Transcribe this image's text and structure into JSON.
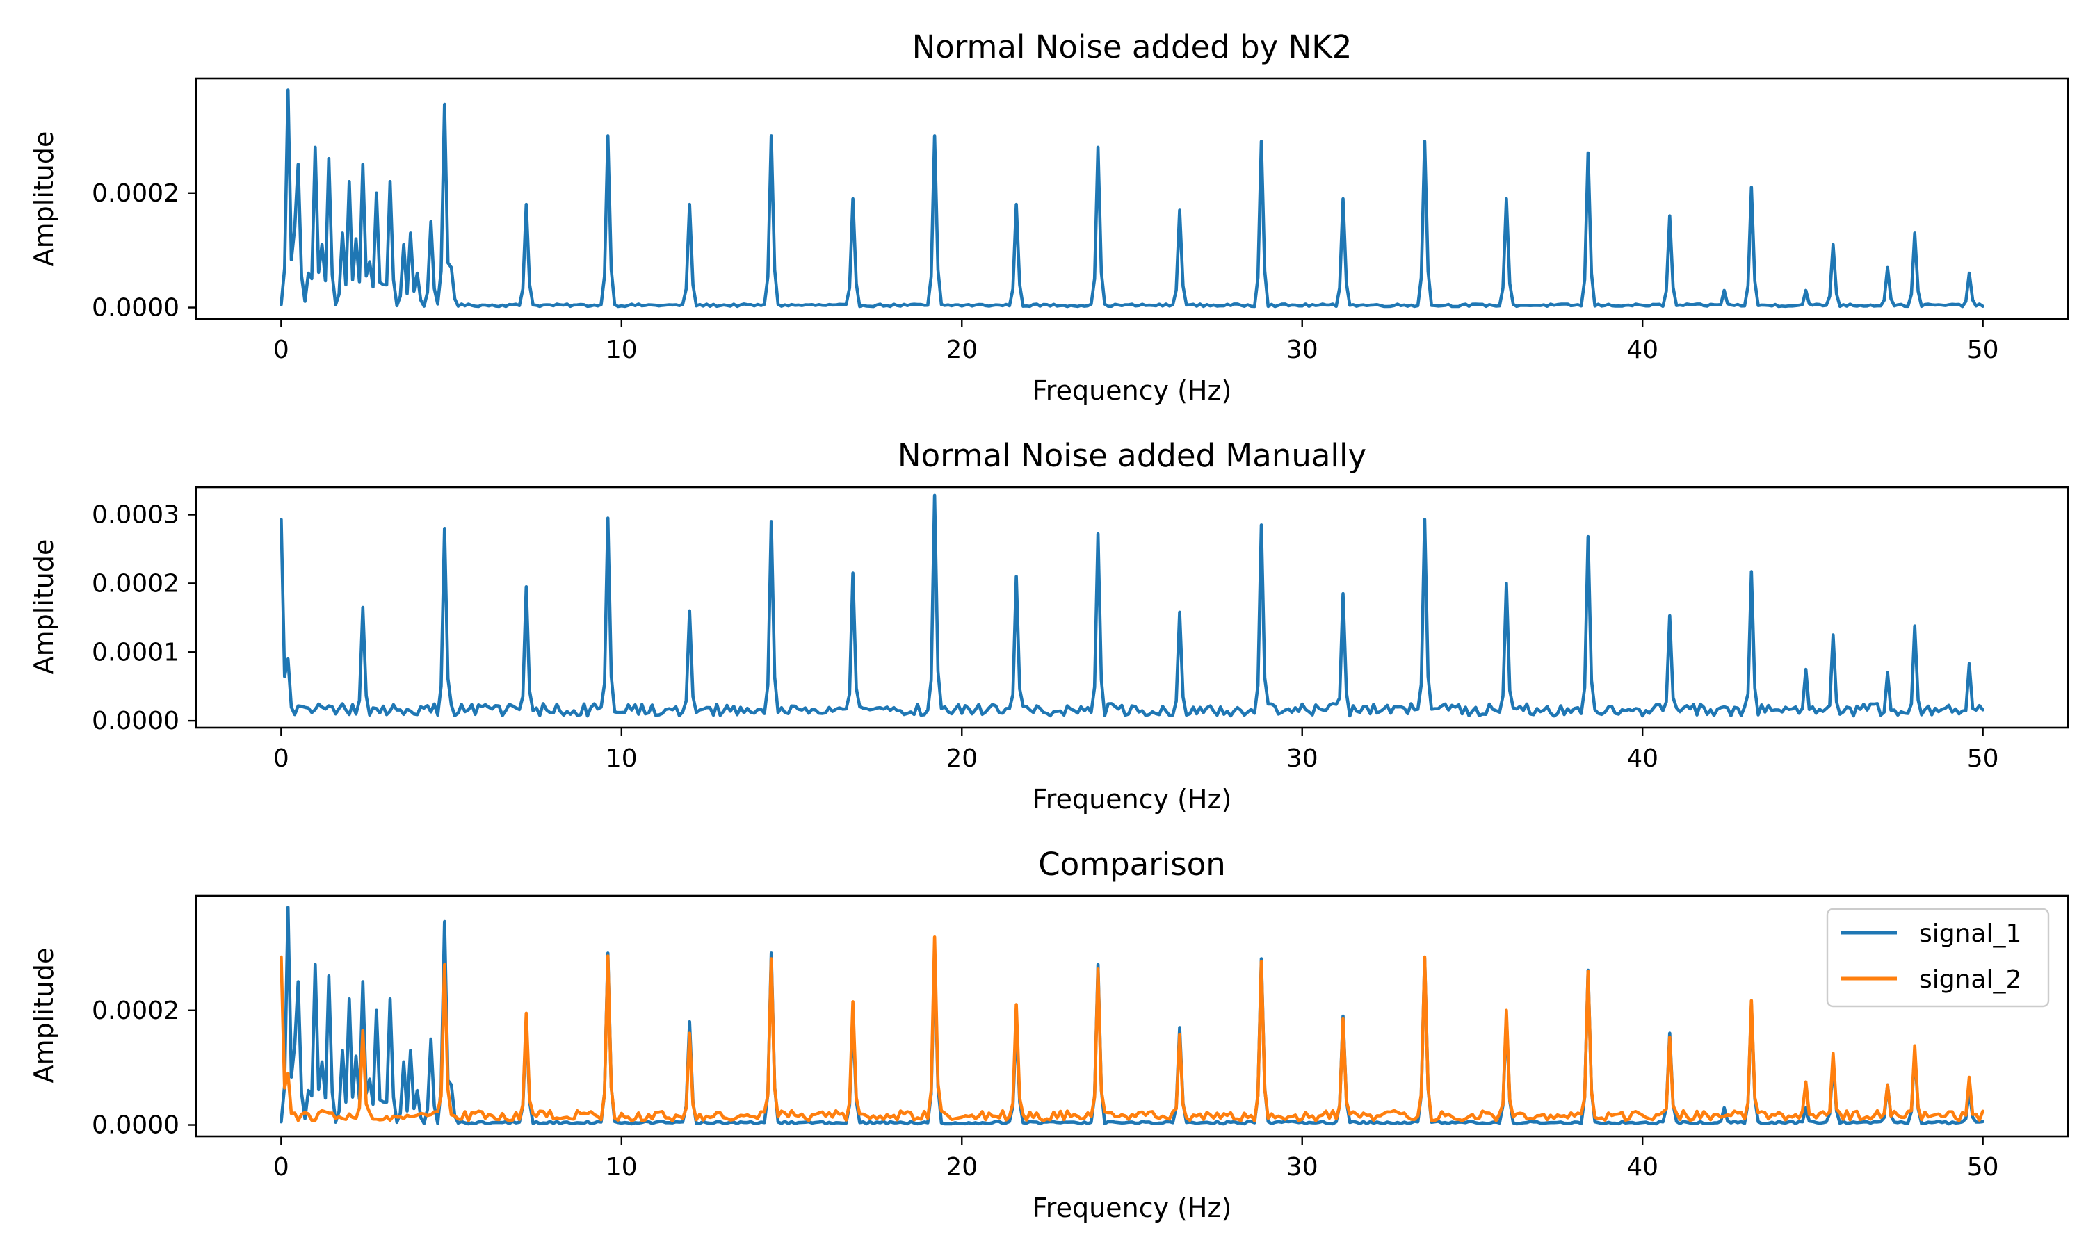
{
  "chart_data": [
    {
      "type": "line",
      "title": "Normal Noise added by NK2",
      "xlabel": "Frequency (Hz)",
      "ylabel": "Amplitude",
      "xlim": [
        -2.5,
        52.5
      ],
      "ylim": [
        -2e-05,
        0.0004
      ],
      "xticks": [
        0,
        10,
        20,
        30,
        40,
        50
      ],
      "xtick_labels": [
        "0",
        "10",
        "20",
        "30",
        "40",
        "50"
      ],
      "yticks": [
        0,
        0.0002
      ],
      "ytick_labels": [
        "0.0000",
        "0.0002"
      ],
      "grid": false,
      "legend": null,
      "series": [
        {
          "color": "#1f77b4",
          "peaks": [
            [
              0.2,
              0.00038
            ],
            [
              0.4,
              0.00014
            ],
            [
              0.45,
              0.00025
            ],
            [
              0.8,
              6e-05
            ],
            [
              1.0,
              0.00028
            ],
            [
              1.2,
              0.00011
            ],
            [
              1.4,
              0.00026
            ],
            [
              1.8,
              0.00013
            ],
            [
              2.0,
              0.00022
            ],
            [
              2.2,
              0.00012
            ],
            [
              2.4,
              0.00025
            ],
            [
              2.6,
              8e-05
            ],
            [
              2.8,
              0.0002
            ],
            [
              3.0,
              4e-05
            ],
            [
              3.2,
              0.00022
            ],
            [
              3.6,
              0.00011
            ],
            [
              3.8,
              0.00013
            ],
            [
              4.0,
              6e-05
            ],
            [
              4.4,
              0.00015
            ],
            [
              4.8,
              0.000355
            ],
            [
              5.0,
              7e-05
            ],
            [
              7.2,
              0.00018
            ],
            [
              9.6,
              0.0003
            ],
            [
              12.0,
              0.00018
            ],
            [
              14.4,
              0.0003
            ],
            [
              16.8,
              0.00019
            ],
            [
              19.2,
              0.0003
            ],
            [
              21.6,
              0.00018
            ],
            [
              24.0,
              0.00028
            ],
            [
              26.4,
              0.00017
            ],
            [
              28.8,
              0.00029
            ],
            [
              31.2,
              0.00019
            ],
            [
              33.6,
              0.00029
            ],
            [
              36.0,
              0.00019
            ],
            [
              38.4,
              0.00027
            ],
            [
              40.8,
              0.00016
            ],
            [
              42.4,
              3e-05
            ],
            [
              43.2,
              0.00021
            ],
            [
              44.8,
              3e-05
            ],
            [
              45.6,
              0.00011
            ],
            [
              47.2,
              7e-05
            ],
            [
              48.0,
              0.00013
            ],
            [
              49.6,
              6e-05
            ]
          ],
          "baseline": 5e-06
        }
      ]
    },
    {
      "type": "line",
      "title": "Normal Noise added Manually",
      "xlabel": "Frequency (Hz)",
      "ylabel": "Amplitude",
      "xlim": [
        -2.5,
        52.5
      ],
      "ylim": [
        -1e-05,
        0.00034
      ],
      "xticks": [
        0,
        10,
        20,
        30,
        40,
        50
      ],
      "xtick_labels": [
        "0",
        "10",
        "20",
        "30",
        "40",
        "50"
      ],
      "yticks": [
        0,
        0.0001,
        0.0002,
        0.0003
      ],
      "ytick_labels": [
        "0.0000",
        "0.0001",
        "0.0002",
        "0.0003"
      ],
      "grid": false,
      "legend": null,
      "series": [
        {
          "color": "#1f77b4",
          "peaks": [
            [
              0.0,
              0.000293
            ],
            [
              0.2,
              9e-05
            ],
            [
              2.4,
              0.000165
            ],
            [
              4.8,
              0.00028
            ],
            [
              7.2,
              0.000195
            ],
            [
              9.6,
              0.000295
            ],
            [
              12.0,
              0.00016
            ],
            [
              14.4,
              0.00029
            ],
            [
              16.8,
              0.000215
            ],
            [
              19.2,
              0.000328
            ],
            [
              21.6,
              0.00021
            ],
            [
              24.0,
              0.000272
            ],
            [
              26.4,
              0.000158
            ],
            [
              28.8,
              0.000285
            ],
            [
              31.2,
              0.000185
            ],
            [
              33.6,
              0.000293
            ],
            [
              36.0,
              0.0002
            ],
            [
              38.4,
              0.000268
            ],
            [
              40.8,
              0.000153
            ],
            [
              43.2,
              0.000217
            ],
            [
              44.8,
              7.5e-05
            ],
            [
              45.6,
              0.000125
            ],
            [
              47.2,
              7e-05
            ],
            [
              48.0,
              0.000138
            ],
            [
              49.6,
              8.3e-05
            ]
          ],
          "baseline": 2e-05
        }
      ]
    },
    {
      "type": "line",
      "title": "Comparison",
      "xlabel": "Frequency (Hz)",
      "ylabel": "Amplitude",
      "xlim": [
        -2.5,
        52.5
      ],
      "ylim": [
        -2e-05,
        0.0004
      ],
      "xticks": [
        0,
        10,
        20,
        30,
        40,
        50
      ],
      "xtick_labels": [
        "0",
        "10",
        "20",
        "30",
        "40",
        "50"
      ],
      "yticks": [
        0,
        0.0002
      ],
      "ytick_labels": [
        "0.0000",
        "0.0002"
      ],
      "grid": false,
      "legend": "top-right",
      "series": [
        {
          "name": "signal_1",
          "color": "#1f77b4",
          "peaks": [
            [
              0.2,
              0.00038
            ],
            [
              0.4,
              0.00014
            ],
            [
              0.45,
              0.00025
            ],
            [
              0.8,
              6e-05
            ],
            [
              1.0,
              0.00028
            ],
            [
              1.2,
              0.00011
            ],
            [
              1.4,
              0.00026
            ],
            [
              1.8,
              0.00013
            ],
            [
              2.0,
              0.00022
            ],
            [
              2.2,
              0.00012
            ],
            [
              2.4,
              0.00025
            ],
            [
              2.6,
              8e-05
            ],
            [
              2.8,
              0.0002
            ],
            [
              3.0,
              4e-05
            ],
            [
              3.2,
              0.00022
            ],
            [
              3.6,
              0.00011
            ],
            [
              3.8,
              0.00013
            ],
            [
              4.0,
              6e-05
            ],
            [
              4.4,
              0.00015
            ],
            [
              4.8,
              0.000355
            ],
            [
              5.0,
              7e-05
            ],
            [
              7.2,
              0.00018
            ],
            [
              9.6,
              0.0003
            ],
            [
              12.0,
              0.00018
            ],
            [
              14.4,
              0.0003
            ],
            [
              16.8,
              0.00019
            ],
            [
              19.2,
              0.0003
            ],
            [
              21.6,
              0.00018
            ],
            [
              24.0,
              0.00028
            ],
            [
              26.4,
              0.00017
            ],
            [
              28.8,
              0.00029
            ],
            [
              31.2,
              0.00019
            ],
            [
              33.6,
              0.00029
            ],
            [
              36.0,
              0.00019
            ],
            [
              38.4,
              0.00027
            ],
            [
              40.8,
              0.00016
            ],
            [
              42.4,
              3e-05
            ],
            [
              43.2,
              0.00021
            ],
            [
              44.8,
              3e-05
            ],
            [
              45.6,
              0.00011
            ],
            [
              47.2,
              7e-05
            ],
            [
              48.0,
              0.00013
            ],
            [
              49.6,
              6e-05
            ]
          ],
          "baseline": 5e-06
        },
        {
          "name": "signal_2",
          "color": "#ff7f0e",
          "peaks": [
            [
              0.0,
              0.000293
            ],
            [
              0.2,
              9e-05
            ],
            [
              2.4,
              0.000165
            ],
            [
              4.8,
              0.00028
            ],
            [
              7.2,
              0.000195
            ],
            [
              9.6,
              0.000295
            ],
            [
              12.0,
              0.00016
            ],
            [
              14.4,
              0.00029
            ],
            [
              16.8,
              0.000215
            ],
            [
              19.2,
              0.000328
            ],
            [
              21.6,
              0.00021
            ],
            [
              24.0,
              0.000272
            ],
            [
              26.4,
              0.000158
            ],
            [
              28.8,
              0.000285
            ],
            [
              31.2,
              0.000185
            ],
            [
              33.6,
              0.000293
            ],
            [
              36.0,
              0.0002
            ],
            [
              38.4,
              0.000268
            ],
            [
              40.8,
              0.000153
            ],
            [
              43.2,
              0.000217
            ],
            [
              44.8,
              7.5e-05
            ],
            [
              45.6,
              0.000125
            ],
            [
              47.2,
              7e-05
            ],
            [
              48.0,
              0.000138
            ],
            [
              49.6,
              8.3e-05
            ]
          ],
          "baseline": 2e-05
        }
      ]
    }
  ]
}
